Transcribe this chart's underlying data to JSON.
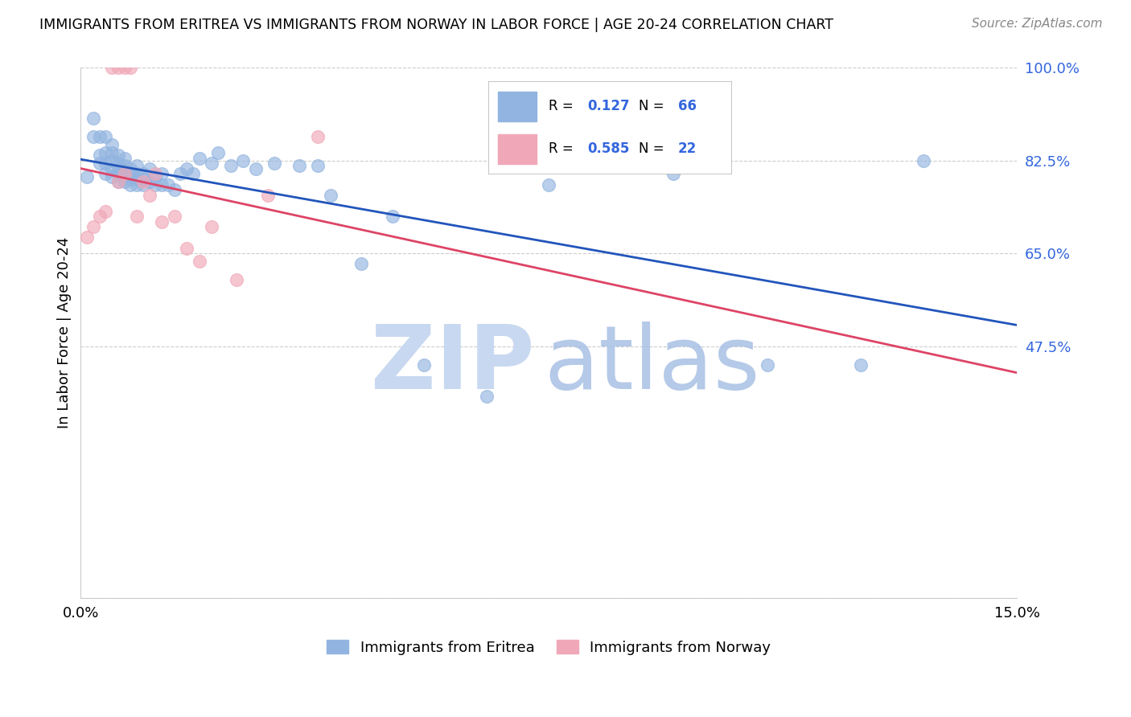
{
  "title": "IMMIGRANTS FROM ERITREA VS IMMIGRANTS FROM NORWAY IN LABOR FORCE | AGE 20-24 CORRELATION CHART",
  "source": "Source: ZipAtlas.com",
  "ylabel": "In Labor Force | Age 20-24",
  "xmin": 0.0,
  "xmax": 0.15,
  "ymin": 0.0,
  "ymax": 1.0,
  "yticks": [
    0.0,
    0.475,
    0.65,
    0.825,
    1.0
  ],
  "ytick_labels": [
    "",
    "47.5%",
    "65.0%",
    "82.5%",
    "100.0%"
  ],
  "xtick_labels": [
    "0.0%",
    "15.0%"
  ],
  "legend_labels": [
    "Immigrants from Eritrea",
    "Immigrants from Norway"
  ],
  "r_eritrea": "0.127",
  "n_eritrea": "66",
  "r_norway": "0.585",
  "n_norway": "22",
  "eritrea_color": "#92B4E0",
  "norway_color": "#F0A8B8",
  "eritrea_line_color": "#2255BB",
  "norway_line_color": "#DD4466",
  "eritrea_x": [
    0.001,
    0.002,
    0.002,
    0.003,
    0.003,
    0.003,
    0.004,
    0.004,
    0.004,
    0.004,
    0.005,
    0.005,
    0.005,
    0.005,
    0.005,
    0.006,
    0.006,
    0.006,
    0.006,
    0.006,
    0.007,
    0.007,
    0.007,
    0.007,
    0.007,
    0.008,
    0.008,
    0.008,
    0.008,
    0.009,
    0.009,
    0.009,
    0.009,
    0.01,
    0.01,
    0.01,
    0.011,
    0.011,
    0.012,
    0.012,
    0.013,
    0.013,
    0.014,
    0.015,
    0.016,
    0.017,
    0.018,
    0.019,
    0.021,
    0.022,
    0.024,
    0.026,
    0.028,
    0.031,
    0.035,
    0.038,
    0.04,
    0.045,
    0.05,
    0.055,
    0.065,
    0.075,
    0.095,
    0.11,
    0.125,
    0.135
  ],
  "eritrea_y": [
    0.795,
    0.87,
    0.905,
    0.82,
    0.835,
    0.87,
    0.8,
    0.82,
    0.84,
    0.87,
    0.795,
    0.81,
    0.825,
    0.84,
    0.855,
    0.785,
    0.8,
    0.81,
    0.82,
    0.835,
    0.785,
    0.795,
    0.805,
    0.815,
    0.83,
    0.78,
    0.79,
    0.8,
    0.81,
    0.78,
    0.79,
    0.8,
    0.815,
    0.78,
    0.79,
    0.8,
    0.785,
    0.81,
    0.78,
    0.795,
    0.78,
    0.8,
    0.78,
    0.77,
    0.8,
    0.81,
    0.8,
    0.83,
    0.82,
    0.84,
    0.815,
    0.825,
    0.81,
    0.82,
    0.815,
    0.815,
    0.76,
    0.63,
    0.72,
    0.44,
    0.38,
    0.78,
    0.8,
    0.44,
    0.44,
    0.825
  ],
  "norway_x": [
    0.001,
    0.002,
    0.003,
    0.004,
    0.005,
    0.006,
    0.006,
    0.007,
    0.007,
    0.008,
    0.009,
    0.01,
    0.011,
    0.012,
    0.013,
    0.015,
    0.017,
    0.019,
    0.021,
    0.025,
    0.03,
    0.038
  ],
  "norway_y": [
    0.68,
    0.7,
    0.72,
    0.73,
    1.0,
    1.0,
    0.785,
    1.0,
    0.8,
    1.0,
    0.72,
    0.785,
    0.76,
    0.8,
    0.71,
    0.72,
    0.66,
    0.635,
    0.7,
    0.6,
    0.76,
    0.87
  ]
}
